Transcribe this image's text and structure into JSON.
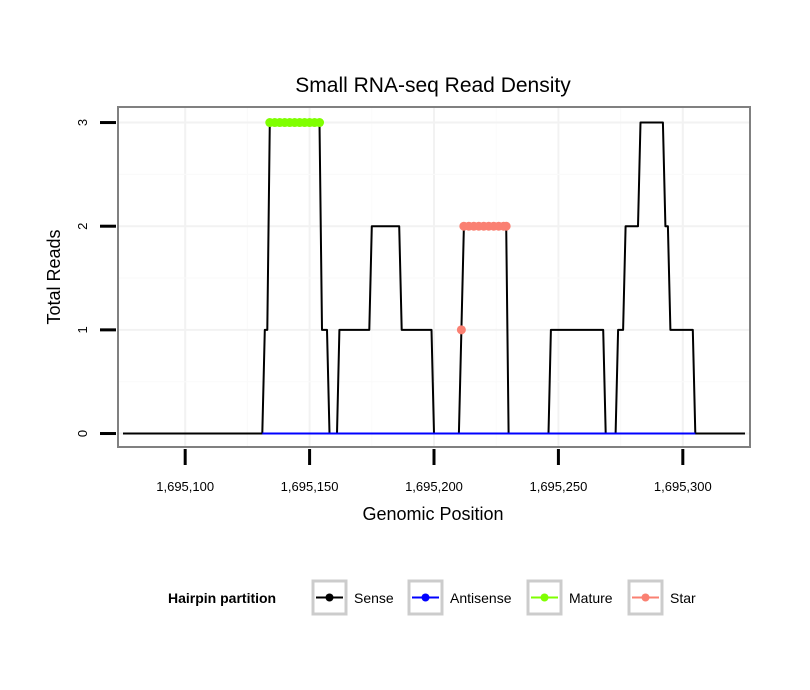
{
  "chart_data": {
    "type": "line",
    "title": "Small RNA-seq Read Density",
    "xlabel": "Genomic Position",
    "ylabel": "Total Reads",
    "xlim": [
      1695073,
      1695327
    ],
    "ylim": [
      -0.13,
      3.15
    ],
    "x_ticks": [
      1695100,
      1695150,
      1695200,
      1695250,
      1695300
    ],
    "x_tick_labels": [
      "1,695,100",
      "1,695,150",
      "1,695,200",
      "1,695,250",
      "1,695,300"
    ],
    "y_ticks": [
      0,
      1,
      2,
      3
    ],
    "y_tick_labels": [
      "0",
      "1",
      "2",
      "3"
    ],
    "legend": {
      "title": "Hairpin partition",
      "position": "bottom",
      "entries": [
        "Sense",
        "Antisense",
        "Mature",
        "Star"
      ]
    },
    "series": [
      {
        "name": "Sense",
        "color": "#000000",
        "marker": false,
        "points": [
          [
            1695075,
            0
          ],
          [
            1695131,
            0
          ],
          [
            1695132,
            1
          ],
          [
            1695133,
            1
          ],
          [
            1695134,
            3
          ],
          [
            1695154,
            3
          ],
          [
            1695155,
            1
          ],
          [
            1695157,
            1
          ],
          [
            1695158,
            0
          ],
          [
            1695161,
            0
          ],
          [
            1695162,
            1
          ],
          [
            1695174,
            1
          ],
          [
            1695175,
            2
          ],
          [
            1695186,
            2
          ],
          [
            1695187,
            1
          ],
          [
            1695199,
            1
          ],
          [
            1695200,
            0
          ],
          [
            1695210,
            0
          ],
          [
            1695211,
            1
          ],
          [
            1695212,
            2
          ],
          [
            1695229,
            2
          ],
          [
            1695230,
            0
          ],
          [
            1695246,
            0
          ],
          [
            1695247,
            1
          ],
          [
            1695268,
            1
          ],
          [
            1695269,
            0
          ],
          [
            1695273,
            0
          ],
          [
            1695274,
            1
          ],
          [
            1695276,
            1
          ],
          [
            1695277,
            2
          ],
          [
            1695282,
            2
          ],
          [
            1695283,
            3
          ],
          [
            1695292,
            3
          ],
          [
            1695293,
            2
          ],
          [
            1695294,
            2
          ],
          [
            1695295,
            1
          ],
          [
            1695304,
            1
          ],
          [
            1695305,
            0
          ],
          [
            1695325,
            0
          ]
        ]
      },
      {
        "name": "Antisense",
        "color": "#0000ff",
        "marker": false,
        "points": [
          [
            1695131,
            0
          ],
          [
            1695305,
            0
          ]
        ]
      },
      {
        "name": "Mature",
        "color": "#7fff00",
        "marker": true,
        "points": [
          [
            1695134,
            3
          ],
          [
            1695136,
            3
          ],
          [
            1695138,
            3
          ],
          [
            1695140,
            3
          ],
          [
            1695142,
            3
          ],
          [
            1695144,
            3
          ],
          [
            1695146,
            3
          ],
          [
            1695148,
            3
          ],
          [
            1695150,
            3
          ],
          [
            1695152,
            3
          ],
          [
            1695154,
            3
          ]
        ]
      },
      {
        "name": "Star",
        "color": "#fa8072",
        "marker": true,
        "points": [
          [
            1695211,
            1
          ],
          [
            1695212,
            2
          ],
          [
            1695214,
            2
          ],
          [
            1695216,
            2
          ],
          [
            1695218,
            2
          ],
          [
            1695220,
            2
          ],
          [
            1695222,
            2
          ],
          [
            1695224,
            2
          ],
          [
            1695226,
            2
          ],
          [
            1695228,
            2
          ],
          [
            1695229,
            2
          ]
        ]
      }
    ]
  },
  "colors": {
    "panel_border": "#808080",
    "grid_major": "#f2f2f2",
    "grid_minor": "#fafafa",
    "legend_key_border": "#cccccc"
  }
}
